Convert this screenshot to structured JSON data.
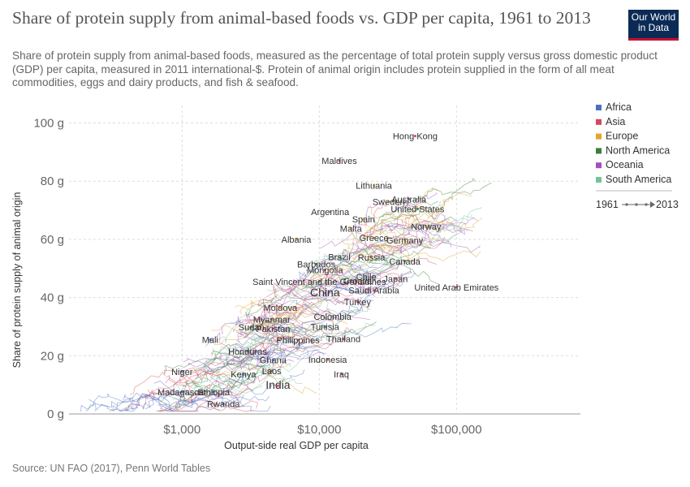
{
  "header": {
    "title": "Share of protein supply from animal-based foods vs. GDP per capita, 1961 to 2013",
    "subtitle": "Share of protein supply from animal-based foods, measured as the percentage of total protein supply versus gross domestic product (GDP) per capita, measured in 2011 international-$. Protein of animal origin includes protein supplied in the form of all meat commodities, eggs and dairy products, and fish & seafood.",
    "logo_line1": "Our World",
    "logo_line2": "in Data"
  },
  "footer": {
    "source": "Source: UN FAO (2017), Penn World Tables"
  },
  "colors": {
    "Africa": "#4c6fc0",
    "Asia": "#d5475a",
    "Europe": "#e6a42a",
    "North America": "#3d7d3a",
    "Oceania": "#a04fc0",
    "South America": "#73c49a",
    "grid": "#dddddd",
    "zero_line": "#999999"
  },
  "chart_data": {
    "type": "scatter",
    "title": "Share of protein supply from animal-based foods vs. GDP per capita, 1961 to 2013",
    "xlabel": "Output-side real GDP per capita",
    "ylabel": "Share of protein supply of animal origin",
    "x_scale": "log",
    "y_ticks": [
      0,
      20,
      40,
      60,
      80,
      100
    ],
    "y_tick_labels": [
      "0 g",
      "20 g",
      "40 g",
      "60 g",
      "80 g",
      "100 g"
    ],
    "x_ticks": [
      1000,
      10000,
      100000
    ],
    "x_tick_labels": [
      "$1,000",
      "$10,000",
      "$100,000"
    ],
    "xlim": [
      150,
      800000
    ],
    "ylim": [
      0,
      106
    ],
    "grid": true,
    "legend": {
      "placement": "right",
      "entries": [
        "Africa",
        "Asia",
        "Europe",
        "North America",
        "Oceania",
        "South America"
      ],
      "time_range": {
        "start": "1961",
        "end": "2013"
      }
    },
    "points": [
      {
        "label": "Hong Kong",
        "region": "Asia",
        "x": 50000,
        "y": 95.5,
        "big": false
      },
      {
        "label": "Maldives",
        "region": "Asia",
        "x": 14000,
        "y": 87,
        "big": false
      },
      {
        "label": "Lithuania",
        "region": "Europe",
        "x": 25000,
        "y": 78.5,
        "big": false
      },
      {
        "label": "Australia",
        "region": "Oceania",
        "x": 45000,
        "y": 73.8,
        "big": false
      },
      {
        "label": "Sweden",
        "region": "Europe",
        "x": 32000,
        "y": 73,
        "big": false
      },
      {
        "label": "United States",
        "region": "North America",
        "x": 52000,
        "y": 70.5,
        "big": false
      },
      {
        "label": "Argentina",
        "region": "South America",
        "x": 12000,
        "y": 69.5,
        "big": false
      },
      {
        "label": "Spain",
        "region": "Europe",
        "x": 21000,
        "y": 67,
        "big": false
      },
      {
        "label": "Malta",
        "region": "Europe",
        "x": 17000,
        "y": 63.8,
        "big": false
      },
      {
        "label": "Norway",
        "region": "Europe",
        "x": 60000,
        "y": 64.5,
        "big": false
      },
      {
        "label": "Albania",
        "region": "Europe",
        "x": 6800,
        "y": 60,
        "big": false
      },
      {
        "label": "Greece",
        "region": "Europe",
        "x": 25000,
        "y": 60.5,
        "big": false
      },
      {
        "label": "Germany",
        "region": "Europe",
        "x": 42000,
        "y": 59.7,
        "big": false
      },
      {
        "label": "Brazil",
        "region": "South America",
        "x": 14000,
        "y": 54,
        "big": false
      },
      {
        "label": "Russia",
        "region": "Europe",
        "x": 24000,
        "y": 53.8,
        "big": false
      },
      {
        "label": "Canada",
        "region": "North America",
        "x": 42000,
        "y": 52.5,
        "big": false
      },
      {
        "label": "Barbados",
        "region": "North America",
        "x": 9500,
        "y": 51.5,
        "big": false
      },
      {
        "label": "Mongolia",
        "region": "Asia",
        "x": 11000,
        "y": 49.5,
        "big": false
      },
      {
        "label": "Chile",
        "region": "South America",
        "x": 22000,
        "y": 47.2,
        "big": false
      },
      {
        "label": "Japan",
        "region": "Asia",
        "x": 36000,
        "y": 46.5,
        "big": false
      },
      {
        "label": "Saint Vincent and the Grenadines",
        "region": "North America",
        "x": 10000,
        "y": 45.5,
        "big": false
      },
      {
        "label": "Croatia",
        "region": "Europe",
        "x": 19000,
        "y": 45.8,
        "big": false
      },
      {
        "label": "United Arab Emirates",
        "region": "Asia",
        "x": 100000,
        "y": 43.5,
        "big": false
      },
      {
        "label": "China",
        "region": "Asia",
        "x": 11000,
        "y": 41.5,
        "big": true
      },
      {
        "label": "Saudi Arabia",
        "region": "Asia",
        "x": 25000,
        "y": 42.5,
        "big": false
      },
      {
        "label": "Turkey",
        "region": "Asia",
        "x": 19000,
        "y": 38.5,
        "big": false
      },
      {
        "label": "Moldova",
        "region": "Europe",
        "x": 5200,
        "y": 36.5,
        "big": false
      },
      {
        "label": "Colombia",
        "region": "South America",
        "x": 12500,
        "y": 33.5,
        "big": false
      },
      {
        "label": "Myanmar",
        "region": "Asia",
        "x": 4500,
        "y": 32.5,
        "big": false
      },
      {
        "label": "Tunisia",
        "region": "Africa",
        "x": 11000,
        "y": 30,
        "big": false
      },
      {
        "label": "Sudan",
        "region": "Africa",
        "x": 3200,
        "y": 29.8,
        "big": false
      },
      {
        "label": "Pakistan",
        "region": "Asia",
        "x": 4600,
        "y": 29.3,
        "big": false
      },
      {
        "label": "Mali",
        "region": "Africa",
        "x": 1600,
        "y": 25.5,
        "big": false
      },
      {
        "label": "Philippines",
        "region": "Asia",
        "x": 7000,
        "y": 25.4,
        "big": false
      },
      {
        "label": "Thailand",
        "region": "Asia",
        "x": 15000,
        "y": 25.8,
        "big": false
      },
      {
        "label": "Honduras",
        "region": "North America",
        "x": 3000,
        "y": 21.5,
        "big": false
      },
      {
        "label": "Ghana",
        "region": "Africa",
        "x": 4600,
        "y": 18.5,
        "big": false
      },
      {
        "label": "Indonesia",
        "region": "Asia",
        "x": 11500,
        "y": 18.7,
        "big": false
      },
      {
        "label": "Niger",
        "region": "Africa",
        "x": 1000,
        "y": 14.5,
        "big": false
      },
      {
        "label": "Laos",
        "region": "Asia",
        "x": 4500,
        "y": 14.8,
        "big": false
      },
      {
        "label": "Kenya",
        "region": "Africa",
        "x": 2800,
        "y": 13.7,
        "big": false
      },
      {
        "label": "Iraq",
        "region": "Asia",
        "x": 14500,
        "y": 13.7,
        "big": false
      },
      {
        "label": "India",
        "region": "Asia",
        "x": 5000,
        "y": 9.7,
        "big": true
      },
      {
        "label": "Madagascar",
        "region": "Africa",
        "x": 1000,
        "y": 7.5,
        "big": false
      },
      {
        "label": "Ethiopia",
        "region": "Africa",
        "x": 1700,
        "y": 7.5,
        "big": false
      },
      {
        "label": "Rwanda",
        "region": "Africa",
        "x": 2000,
        "y": 3.5,
        "big": false
      }
    ]
  }
}
